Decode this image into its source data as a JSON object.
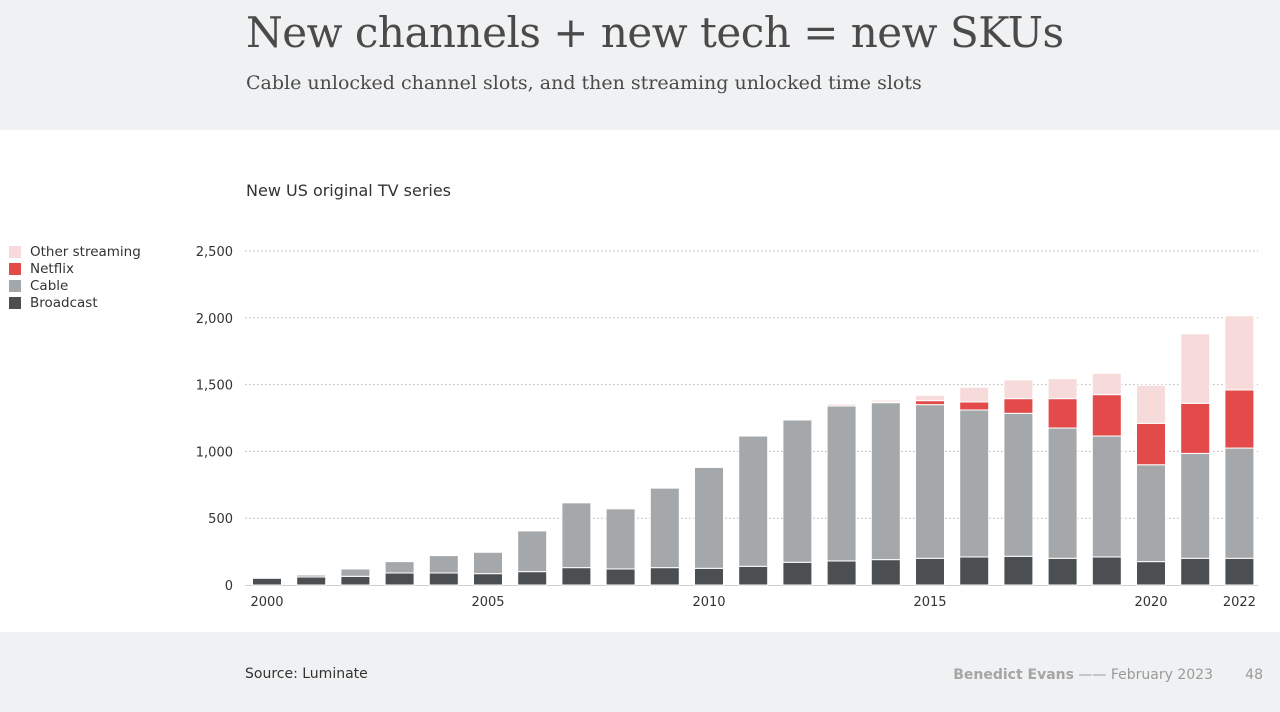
{
  "slide": {
    "title": "New channels + new tech = new SKUs",
    "subtitle": "Cable unlocked channel slots, and then streaming unlocked time slots",
    "source": "Source: Luminate",
    "author": "Benedict Evans",
    "separator": "——",
    "date": "February 2023",
    "page_number": "48"
  },
  "colors": {
    "other_streaming": "#f7dada",
    "netflix": "#e34a4a",
    "cable": "#a5a8aa",
    "broadcast": "#4b4f52",
    "grid": "#b5b5b5",
    "header_bg": "#f0f1f2"
  },
  "chart_data": {
    "type": "bar",
    "stacked": true,
    "title": "New US original TV series",
    "xlabel": "",
    "ylabel": "",
    "ylim": [
      0,
      2500
    ],
    "yticks": [
      0,
      500,
      1000,
      1500,
      2000,
      2500
    ],
    "ytick_labels": [
      "0",
      "500",
      "1,000",
      "1,500",
      "2,000",
      "2,500"
    ],
    "x_tick_labels": [
      {
        "year": 2000,
        "label": "2000"
      },
      {
        "year": 2005,
        "label": "2005"
      },
      {
        "year": 2010,
        "label": "2010"
      },
      {
        "year": 2015,
        "label": "2015"
      },
      {
        "year": 2020,
        "label": "2020"
      },
      {
        "year": 2022,
        "label": "2022"
      }
    ],
    "grid": true,
    "legend_position": "left",
    "categories": [
      2000,
      2001,
      2002,
      2003,
      2004,
      2005,
      2006,
      2007,
      2008,
      2009,
      2010,
      2011,
      2012,
      2013,
      2014,
      2015,
      2016,
      2017,
      2018,
      2019,
      2020,
      2021,
      2022
    ],
    "series": [
      {
        "name": "Broadcast",
        "color_key": "broadcast",
        "values": [
          50,
          60,
          65,
          90,
          90,
          85,
          100,
          130,
          120,
          130,
          125,
          140,
          170,
          180,
          190,
          200,
          210,
          215,
          200,
          210,
          175,
          200,
          200
        ]
      },
      {
        "name": "Cable",
        "color_key": "cable",
        "values": [
          0,
          15,
          55,
          85,
          130,
          160,
          305,
          485,
          450,
          595,
          755,
          975,
          1065,
          1160,
          1175,
          1150,
          1100,
          1070,
          975,
          905,
          725,
          785,
          825
        ]
      },
      {
        "name": "Netflix",
        "color_key": "netflix",
        "values": [
          0,
          0,
          0,
          0,
          0,
          0,
          0,
          0,
          0,
          0,
          0,
          0,
          0,
          0,
          5,
          30,
          60,
          110,
          220,
          310,
          310,
          375,
          435
        ]
      },
      {
        "name": "Other streaming",
        "color_key": "other_streaming",
        "values": [
          0,
          0,
          0,
          0,
          0,
          0,
          0,
          0,
          0,
          0,
          0,
          0,
          0,
          15,
          15,
          40,
          110,
          140,
          150,
          160,
          285,
          520,
          555
        ]
      }
    ],
    "legend_order": [
      "Other streaming",
      "Netflix",
      "Cable",
      "Broadcast"
    ]
  }
}
